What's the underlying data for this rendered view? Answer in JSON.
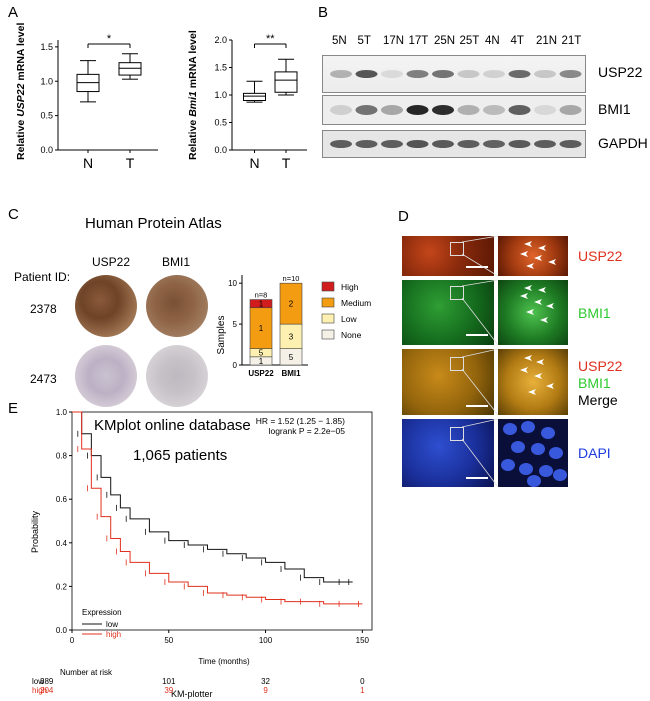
{
  "panels": {
    "A": "A",
    "B": "B",
    "C": "C",
    "D": "D",
    "E": "E"
  },
  "panelA": {
    "left": {
      "ylabel_pre": "Relative ",
      "ylabel_gene": "USP22",
      "ylabel_post": " mRNA level",
      "yticks": [
        "0.0",
        "0.5",
        "1.0",
        "1.5"
      ],
      "categories": [
        "N",
        "T"
      ],
      "sig": "*"
    },
    "right": {
      "ylabel_pre": "Relative ",
      "ylabel_gene": "Bmi1",
      "ylabel_post": " mRNA level",
      "yticks": [
        "0.0",
        "0.5",
        "1.0",
        "1.5",
        "2.0"
      ],
      "categories": [
        "N",
        "T"
      ],
      "sig": "**"
    }
  },
  "panelB": {
    "lanes": [
      "5N",
      "5T",
      "17N",
      "17T",
      "25N",
      "25T",
      "4N",
      "4T",
      "21N",
      "21T"
    ],
    "rows": [
      "USP22",
      "BMI1",
      "GAPDH"
    ]
  },
  "panelC": {
    "title": "Human Protein Atlas",
    "col_labels": [
      "USP22",
      "BMI1"
    ],
    "patient_label": "Patient ID:",
    "patients": [
      "2378",
      "2473"
    ],
    "bar": {
      "ylabel": "Samples",
      "yticks": [
        "0",
        "5",
        "10"
      ],
      "n_labels": [
        "n=8",
        "n=10"
      ],
      "categories": [
        "USP22",
        "BMI1"
      ],
      "legend": [
        "High",
        "Medium",
        "Low",
        "None"
      ],
      "seg_labels": {
        "USP22": [
          "1",
          "1",
          "5",
          "1"
        ],
        "BMI1": [
          "2",
          "3",
          "5"
        ]
      }
    }
  },
  "panelD": {
    "labels": {
      "usp22": "USP22",
      "bmi1": "BMI1",
      "merge_usp22": "USP22",
      "merge_bmi1": "BMI1",
      "merge": "Merge",
      "dapi": "DAPI"
    }
  },
  "panelE": {
    "title": "KMplot online database",
    "patients": "1,065 patients",
    "hr": "HR = 1.52 (1.25 − 1.85)",
    "logrank": "logrank P = 2.2e−05",
    "ylabel": "Probability",
    "xlabel": "Time (months)",
    "yticks": [
      "0.0",
      "0.2",
      "0.4",
      "0.6",
      "0.8",
      "1.0"
    ],
    "xticks": [
      "0",
      "50",
      "100",
      "150"
    ],
    "legend_title": "Expression",
    "legend": [
      "low",
      "high"
    ],
    "risk_title": "Number at risk",
    "risk_rows": [
      {
        "label": "low",
        "values": [
          "389",
          "101",
          "32",
          "0"
        ]
      },
      {
        "label": "high",
        "values": [
          "204",
          "39",
          "9",
          "1"
        ]
      }
    ],
    "footer": "KM-plotter"
  },
  "colors": {
    "high": "#d01c1c",
    "medium": "#f39c12",
    "low": "#fdf0b0",
    "none": "#f5f1e6",
    "km_low": "#111111",
    "km_high": "#e0301e",
    "usp22_text": "#e0301e",
    "bmi1_text": "#2fc92f",
    "dapi_text": "#1e3ce0"
  },
  "chart_data": [
    {
      "type": "box",
      "categories": [
        "N",
        "T"
      ],
      "ylabel": "Relative USP22 mRNA level",
      "ylim": [
        0,
        1.6
      ],
      "boxes": [
        {
          "whisker_low": 0.7,
          "q1": 0.85,
          "median": 0.98,
          "q3": 1.1,
          "whisker_high": 1.3
        },
        {
          "whisker_low": 1.03,
          "q1": 1.09,
          "median": 1.19,
          "q3": 1.27,
          "whisker_high": 1.4
        }
      ]
    },
    {
      "type": "box",
      "categories": [
        "N",
        "T"
      ],
      "ylabel": "Relative Bmi1 mRNA level",
      "ylim": [
        0,
        2.0
      ],
      "boxes": [
        {
          "whisker_low": 0.87,
          "q1": 0.9,
          "median": 0.98,
          "q3": 1.03,
          "whisker_high": 1.25
        },
        {
          "whisker_low": 1.0,
          "q1": 1.05,
          "median": 1.27,
          "q3": 1.42,
          "whisker_high": 1.65
        }
      ]
    },
    {
      "type": "bar",
      "stacked": true,
      "categories": [
        "USP22",
        "BMI1"
      ],
      "ylabel": "Samples",
      "ylim": [
        0,
        11
      ],
      "series": [
        {
          "name": "None",
          "values": [
            1,
            2
          ]
        },
        {
          "name": "Low",
          "values": [
            1,
            3
          ]
        },
        {
          "name": "Medium",
          "values": [
            5,
            5
          ]
        },
        {
          "name": "High",
          "values": [
            1,
            0
          ]
        }
      ]
    },
    {
      "type": "line",
      "title": "KMplot online database",
      "xlabel": "Time (months)",
      "ylabel": "Probability",
      "xlim": [
        0,
        155
      ],
      "ylim": [
        0,
        1
      ],
      "series": [
        {
          "name": "low",
          "x": [
            0,
            5,
            10,
            15,
            20,
            25,
            30,
            40,
            50,
            60,
            70,
            80,
            90,
            100,
            110,
            120,
            130,
            140,
            145
          ],
          "y": [
            1.0,
            0.9,
            0.8,
            0.7,
            0.62,
            0.56,
            0.51,
            0.45,
            0.41,
            0.39,
            0.37,
            0.35,
            0.33,
            0.31,
            0.28,
            0.24,
            0.22,
            0.22,
            0.22
          ]
        },
        {
          "name": "high",
          "x": [
            0,
            5,
            10,
            15,
            20,
            25,
            30,
            40,
            50,
            60,
            70,
            80,
            90,
            100,
            110,
            120,
            130,
            140,
            150
          ],
          "y": [
            1.0,
            0.83,
            0.65,
            0.52,
            0.42,
            0.36,
            0.31,
            0.26,
            0.22,
            0.2,
            0.17,
            0.16,
            0.15,
            0.14,
            0.13,
            0.13,
            0.12,
            0.12,
            0.12
          ]
        }
      ]
    }
  ]
}
